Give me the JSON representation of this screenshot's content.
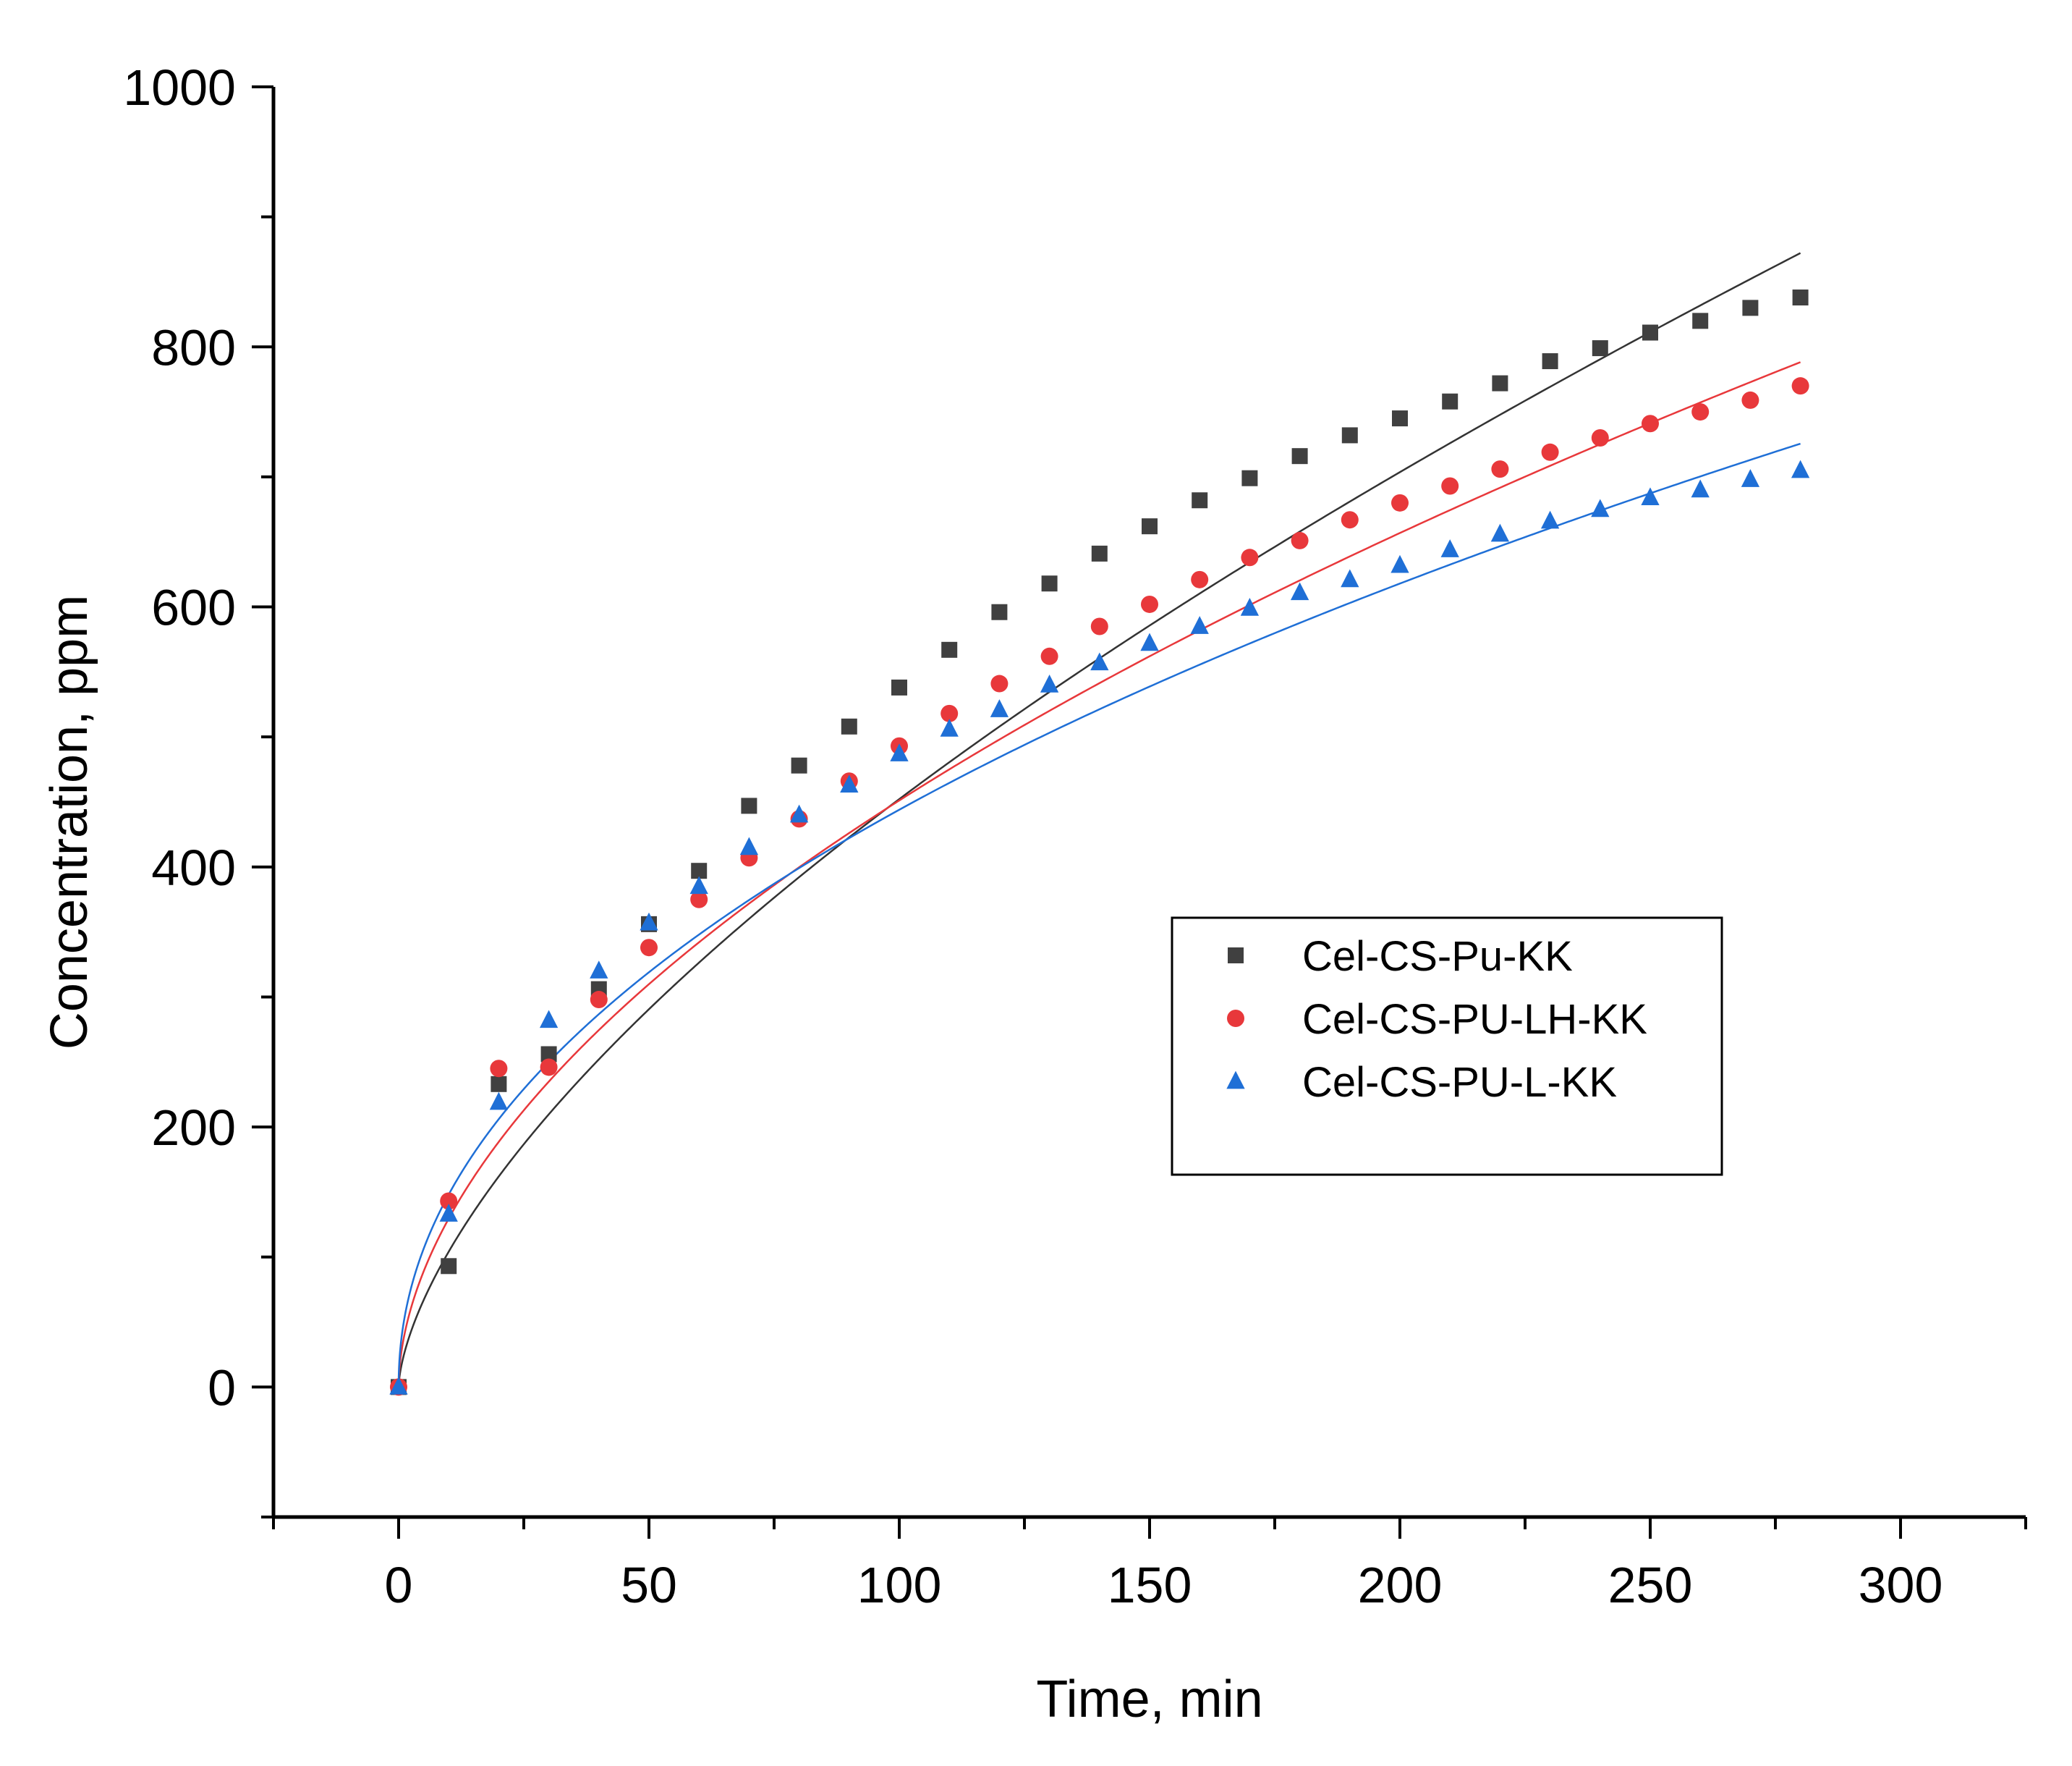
{
  "chart_data": {
    "type": "scatter",
    "title": "",
    "xlabel": "Time, min",
    "ylabel": "Concentration, ppm",
    "xlim": [
      -25,
      325
    ],
    "ylim": [
      -100,
      1000
    ],
    "xticks": [
      0,
      50,
      100,
      150,
      200,
      250,
      300
    ],
    "yticks": [
      0,
      200,
      400,
      600,
      800,
      1000
    ],
    "x": [
      0,
      10,
      20,
      30,
      40,
      50,
      60,
      70,
      80,
      90,
      100,
      110,
      120,
      130,
      140,
      150,
      160,
      170,
      180,
      190,
      200,
      210,
      220,
      230,
      240,
      250,
      260,
      270,
      280
    ],
    "legend_position": "center-right",
    "series": [
      {
        "name": "Cel-CS-Pu-KK",
        "marker": "square",
        "color": "#404040",
        "values": [
          0,
          93,
          233,
          256,
          306,
          356,
          397,
          447,
          478,
          508,
          538,
          567,
          596,
          618,
          641,
          662,
          682,
          699,
          716,
          732,
          745,
          758,
          772,
          789,
          799,
          811,
          820,
          830,
          838
        ],
        "fit": {
          "type": "power",
          "a": 23.95,
          "b": 0.638,
          "color": "#333333"
        }
      },
      {
        "name": "Cel-CS-PU-LH-KK",
        "marker": "circle",
        "color": "#e8383b",
        "values": [
          0,
          143,
          245,
          246,
          298,
          338,
          375,
          407,
          437,
          466,
          493,
          518,
          541,
          562,
          585,
          602,
          621,
          638,
          651,
          667,
          680,
          693,
          706,
          719,
          730,
          741,
          750,
          759,
          770
        ],
        "fit": {
          "type": "power",
          "a": 37.18,
          "b": 0.542,
          "color": "#e8383b"
        }
      },
      {
        "name": "Cel-CS-PU-L-KK",
        "marker": "triangle",
        "color": "#1f6fd6",
        "values": [
          0,
          133,
          219,
          282,
          320,
          357,
          385,
          415,
          440,
          463,
          487,
          506,
          521,
          540,
          557,
          572,
          585,
          599,
          611,
          621,
          632,
          644,
          656,
          666,
          675,
          684,
          690,
          698,
          705
        ],
        "fit": {
          "type": "power",
          "a": 49.36,
          "b": 0.477,
          "color": "#1f6fd6"
        }
      }
    ]
  }
}
